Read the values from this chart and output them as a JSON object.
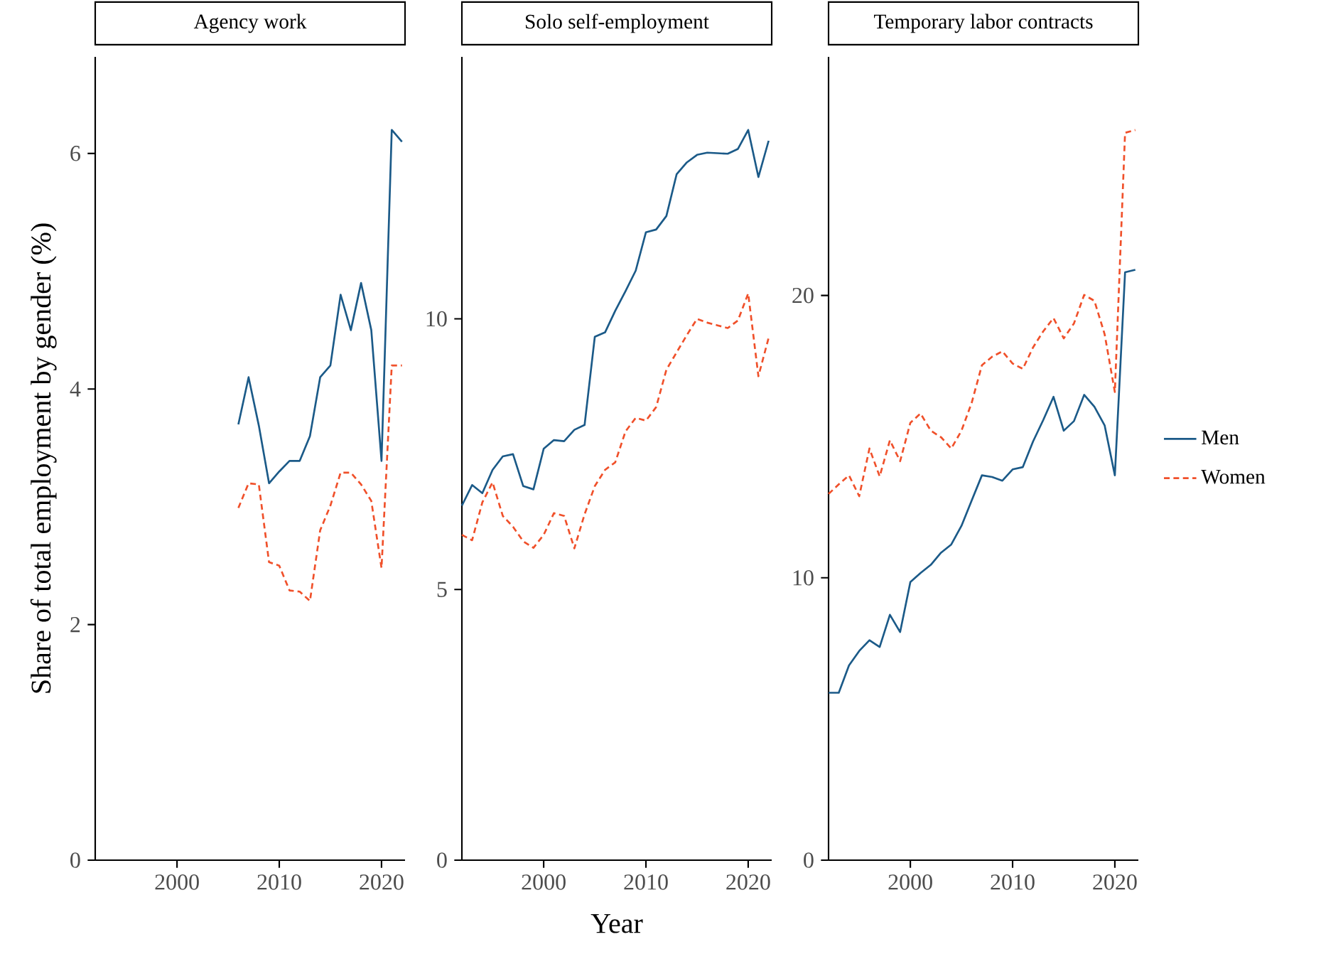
{
  "chart_data": [
    {
      "type": "line",
      "title": "Agency work",
      "ylabel": "Share of total employment by gender (%)",
      "x": [
        2006,
        2007,
        2008,
        2009,
        2010,
        2011,
        2012,
        2013,
        2014,
        2015,
        2016,
        2017,
        2018,
        2019,
        2020,
        2021,
        2022
      ],
      "xlim": [
        1992,
        2022.3
      ],
      "xticks": [
        2000,
        2010,
        2020
      ],
      "ylim": [
        0,
        6.82
      ],
      "yticks": [
        0,
        2,
        4,
        6
      ],
      "series": [
        {
          "color": "#1b5a88",
          "line_style": "solid",
          "values": [
            3.7,
            4.1,
            3.69,
            3.2,
            3.3,
            3.39,
            3.39,
            3.6,
            4.1,
            4.2,
            4.8,
            4.5,
            4.9,
            4.5,
            3.39,
            6.2,
            6.1
          ]
        },
        {
          "color": "#f0502a",
          "line_style": "dashed",
          "values": [
            2.99,
            3.2,
            3.19,
            2.53,
            2.5,
            2.29,
            2.28,
            2.2,
            2.8,
            3.01,
            3.29,
            3.29,
            3.19,
            3.05,
            2.48,
            4.2,
            4.2
          ]
        }
      ]
    },
    {
      "type": "line",
      "title": "Solo self-employment",
      "xlabel": "Year",
      "x": [
        1992,
        1993,
        1994,
        1995,
        1996,
        1997,
        1998,
        1999,
        2000,
        2001,
        2002,
        2003,
        2004,
        2005,
        2006,
        2007,
        2008,
        2009,
        2010,
        2011,
        2012,
        2013,
        2014,
        2015,
        2016,
        2017,
        2018,
        2019,
        2020,
        2021,
        2022
      ],
      "xlim": [
        1992,
        2022.3
      ],
      "xticks": [
        2000,
        2010,
        2020
      ],
      "ylim": [
        0,
        14.84
      ],
      "yticks": [
        0,
        5,
        10
      ],
      "series": [
        {
          "color": "#1b5a88",
          "line_style": "solid",
          "values": [
            6.55,
            6.93,
            6.78,
            7.21,
            7.46,
            7.5,
            6.91,
            6.85,
            7.6,
            7.76,
            7.74,
            7.95,
            8.04,
            9.67,
            9.75,
            10.15,
            10.51,
            10.89,
            11.6,
            11.65,
            11.9,
            12.67,
            12.89,
            13.03,
            13.07,
            13.06,
            13.05,
            13.14,
            13.49,
            12.62,
            13.29
          ]
        },
        {
          "color": "#f0502a",
          "line_style": "dashed",
          "values": [
            6.01,
            5.91,
            6.61,
            6.98,
            6.36,
            6.16,
            5.89,
            5.77,
            6.01,
            6.41,
            6.36,
            5.76,
            6.39,
            6.91,
            7.21,
            7.35,
            7.92,
            8.17,
            8.12,
            8.37,
            9.06,
            9.38,
            9.7,
            10.0,
            9.93,
            9.88,
            9.83,
            9.97,
            10.47,
            8.94,
            9.65
          ]
        }
      ]
    },
    {
      "type": "line",
      "title": "Temporary labor contracts",
      "legend": "right",
      "x": [
        1992,
        1993,
        1994,
        1995,
        1996,
        1997,
        1998,
        1999,
        2000,
        2001,
        2002,
        2003,
        2004,
        2005,
        2006,
        2007,
        2008,
        2009,
        2010,
        2011,
        2012,
        2013,
        2014,
        2015,
        2016,
        2017,
        2018,
        2019,
        2020,
        2021,
        2022
      ],
      "xlim": [
        1992,
        2022.3
      ],
      "xticks": [
        2000,
        2010,
        2020
      ],
      "ylim": [
        0,
        28.45
      ],
      "yticks": [
        0,
        10,
        20
      ],
      "series": [
        {
          "name": "Men",
          "color": "#1b5a88",
          "line_style": "solid",
          "values": [
            5.93,
            5.93,
            6.9,
            7.41,
            7.79,
            7.55,
            8.69,
            8.08,
            9.85,
            10.17,
            10.46,
            10.89,
            11.18,
            11.84,
            12.74,
            13.63,
            13.57,
            13.44,
            13.84,
            13.92,
            14.83,
            15.59,
            16.41,
            15.21,
            15.55,
            16.48,
            16.06,
            15.4,
            13.63,
            20.82,
            20.91
          ]
        },
        {
          "name": "Women",
          "color": "#f0502a",
          "line_style": "dashed",
          "values": [
            12.97,
            13.31,
            13.63,
            12.89,
            14.58,
            13.59,
            14.87,
            14.13,
            15.49,
            15.82,
            15.21,
            14.98,
            14.58,
            15.21,
            16.2,
            17.53,
            17.83,
            18.02,
            17.59,
            17.4,
            18.16,
            18.73,
            19.2,
            18.48,
            19.01,
            20.02,
            19.81,
            18.63,
            16.58,
            25.76,
            25.86
          ]
        }
      ]
    }
  ]
}
